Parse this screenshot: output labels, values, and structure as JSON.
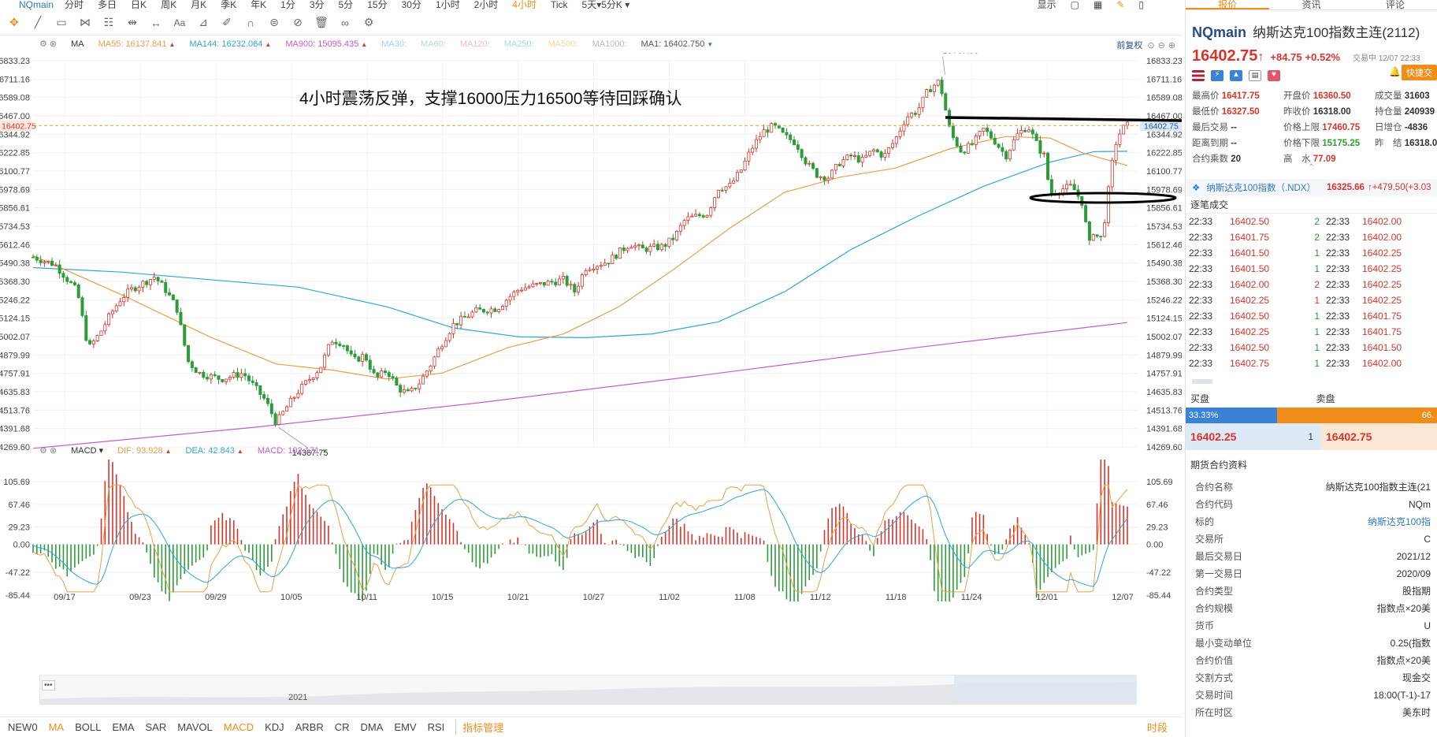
{
  "topbar": {
    "symbol": "NQmain",
    "periods": [
      "分时",
      "多日",
      "日K",
      "周K",
      "月K",
      "季K",
      "年K",
      "1分",
      "3分",
      "5分",
      "15分",
      "30分",
      "1小时",
      "2小时",
      "4小时",
      "Tick",
      "5天▾5分K ▾"
    ],
    "active_period": "4小时",
    "display": "显示"
  },
  "main_legend": {
    "ind": "MA",
    "ma55": "MA55: 16137.841",
    "ma144": "MA144: 16232.064",
    "ma900": "MA900: 15095.435",
    "ma30": "MA30:",
    "ma60": "MA60:",
    "ma120": "MA120:",
    "ma250": "MA250:",
    "ma500": "MA500:",
    "ma1000": "MA1000:",
    "ma1": "MA1: 16402.750",
    "adjust": "前复权"
  },
  "macd_legend": {
    "ind": "MACD",
    "dif": "DIF: 93.928",
    "dea": "DEA: 42.843",
    "macd": "MACD: 102.171"
  },
  "annotation": "4小时震荡反弹，支撑16000压力16500等待回踩确认",
  "colors": {
    "up": "#d9342b",
    "down": "#2e9b3a",
    "ma55": "#e8a04a",
    "ma144": "#2fa7d6",
    "ma900": "#c65bd0",
    "accent": "#f08c1a"
  },
  "chart_data": [
    {
      "type": "candlestick",
      "title": "NQmain 4小时",
      "y_ticks": [
        "16833.23",
        "16711.16",
        "16589.08",
        "16467.00",
        "16344.92",
        "16222.85",
        "16100.77",
        "15978.69",
        "15856.61",
        "15734.53",
        "15612.46",
        "15490.38",
        "15368.30",
        "15246.22",
        "15124.15",
        "15002.07",
        "14879.99",
        "14757.91",
        "14635.83",
        "14513.76",
        "14391.68",
        "14269.60"
      ],
      "ylim": [
        14269.6,
        16833.23
      ],
      "x_ticks": [
        "09/17",
        "09/23",
        "09/29",
        "10/05",
        "10/11",
        "10/15",
        "10/21",
        "10/27",
        "11/02",
        "11/08",
        "11/12",
        "11/18",
        "11/24",
        "12/01",
        "12/07"
      ],
      "current_price": "16402.75",
      "high_label": "16767.50",
      "low_label": "14367.75",
      "close_path": [
        [
          0,
          15530
        ],
        [
          0.02,
          15480
        ],
        [
          0.04,
          15300
        ],
        [
          0.05,
          14920
        ],
        [
          0.06,
          15020
        ],
        [
          0.07,
          15150
        ],
        [
          0.08,
          15260
        ],
        [
          0.09,
          15320
        ],
        [
          0.11,
          15400
        ],
        [
          0.12,
          15310
        ],
        [
          0.13,
          15190
        ],
        [
          0.14,
          14840
        ],
        [
          0.15,
          14760
        ],
        [
          0.17,
          14720
        ],
        [
          0.19,
          14760
        ],
        [
          0.21,
          14580
        ],
        [
          0.22,
          14430
        ],
        [
          0.23,
          14540
        ],
        [
          0.24,
          14640
        ],
        [
          0.25,
          14720
        ],
        [
          0.26,
          14800
        ],
        [
          0.27,
          14980
        ],
        [
          0.28,
          14960
        ],
        [
          0.29,
          14840
        ],
        [
          0.3,
          14880
        ],
        [
          0.31,
          14720
        ],
        [
          0.32,
          14780
        ],
        [
          0.33,
          14660
        ],
        [
          0.34,
          14620
        ],
        [
          0.35,
          14700
        ],
        [
          0.36,
          14820
        ],
        [
          0.37,
          14960
        ],
        [
          0.38,
          15080
        ],
        [
          0.4,
          15170
        ],
        [
          0.42,
          15190
        ],
        [
          0.43,
          15260
        ],
        [
          0.44,
          15320
        ],
        [
          0.46,
          15350
        ],
        [
          0.48,
          15380
        ],
        [
          0.49,
          15300
        ],
        [
          0.5,
          15460
        ],
        [
          0.52,
          15500
        ],
        [
          0.54,
          15620
        ],
        [
          0.55,
          15580
        ],
        [
          0.57,
          15600
        ],
        [
          0.58,
          15660
        ],
        [
          0.59,
          15780
        ],
        [
          0.61,
          15820
        ],
        [
          0.62,
          15990
        ],
        [
          0.63,
          16000
        ],
        [
          0.64,
          16100
        ],
        [
          0.65,
          16250
        ],
        [
          0.66,
          16360
        ],
        [
          0.67,
          16400
        ],
        [
          0.68,
          16330
        ],
        [
          0.69,
          16290
        ],
        [
          0.7,
          16150
        ],
        [
          0.71,
          16070
        ],
        [
          0.72,
          16060
        ],
        [
          0.73,
          16160
        ],
        [
          0.74,
          16200
        ],
        [
          0.75,
          16170
        ],
        [
          0.76,
          16240
        ],
        [
          0.77,
          16200
        ],
        [
          0.78,
          16310
        ],
        [
          0.79,
          16460
        ],
        [
          0.8,
          16500
        ],
        [
          0.81,
          16640
        ],
        [
          0.82,
          16700
        ],
        [
          0.83,
          16350
        ],
        [
          0.84,
          16230
        ],
        [
          0.85,
          16280
        ],
        [
          0.86,
          16380
        ],
        [
          0.87,
          16300
        ],
        [
          0.88,
          16200
        ],
        [
          0.89,
          16340
        ],
        [
          0.9,
          16400
        ],
        [
          0.91,
          16250
        ],
        [
          0.915,
          16200
        ],
        [
          0.92,
          15950
        ],
        [
          0.93,
          15980
        ],
        [
          0.94,
          16000
        ],
        [
          0.95,
          15880
        ],
        [
          0.955,
          15600
        ],
        [
          0.96,
          15720
        ],
        [
          0.965,
          15620
        ],
        [
          0.97,
          15800
        ],
        [
          0.975,
          16100
        ],
        [
          0.98,
          16300
        ],
        [
          0.985,
          16380
        ],
        [
          0.99,
          16402.75
        ]
      ],
      "ma55_path": [
        [
          0,
          15540
        ],
        [
          0.08,
          15280
        ],
        [
          0.16,
          15000
        ],
        [
          0.22,
          14820
        ],
        [
          0.27,
          14780
        ],
        [
          0.32,
          14720
        ],
        [
          0.37,
          14760
        ],
        [
          0.43,
          14930
        ],
        [
          0.48,
          15020
        ],
        [
          0.53,
          15200
        ],
        [
          0.58,
          15450
        ],
        [
          0.63,
          15720
        ],
        [
          0.68,
          15960
        ],
        [
          0.73,
          16060
        ],
        [
          0.78,
          16120
        ],
        [
          0.83,
          16250
        ],
        [
          0.88,
          16330
        ],
        [
          0.92,
          16320
        ],
        [
          0.95,
          16220
        ],
        [
          0.99,
          16137
        ]
      ],
      "ma144_path": [
        [
          0,
          15460
        ],
        [
          0.08,
          15430
        ],
        [
          0.16,
          15380
        ],
        [
          0.24,
          15330
        ],
        [
          0.32,
          15200
        ],
        [
          0.38,
          15060
        ],
        [
          0.44,
          15000
        ],
        [
          0.5,
          14995
        ],
        [
          0.56,
          15020
        ],
        [
          0.62,
          15100
        ],
        [
          0.68,
          15300
        ],
        [
          0.74,
          15580
        ],
        [
          0.8,
          15800
        ],
        [
          0.86,
          16000
        ],
        [
          0.92,
          16160
        ],
        [
          0.96,
          16230
        ],
        [
          0.99,
          16232
        ]
      ],
      "ma900_path": [
        [
          0,
          14260
        ],
        [
          0.2,
          14400
        ],
        [
          0.4,
          14560
        ],
        [
          0.6,
          14740
        ],
        [
          0.8,
          14930
        ],
        [
          0.99,
          15095
        ]
      ]
    },
    {
      "type": "bar",
      "title": "MACD",
      "y_ticks": [
        "105.69",
        "67.46",
        "29.23",
        "0.00",
        "-47.22",
        "-85.44"
      ],
      "ylim": [
        -85.44,
        105.69
      ]
    }
  ],
  "navigator": {
    "year": "2021"
  },
  "indicators": [
    "NEW0",
    "MA",
    "BOLL",
    "EMA",
    "SAR",
    "MAVOL",
    "MACD",
    "KDJ",
    "ARBR",
    "CR",
    "DMA",
    "EMV",
    "RSI"
  ],
  "indicators_active": [
    "MA",
    "MACD"
  ],
  "indicator_manager": "指标管理",
  "tr_button": "时段",
  "panel": {
    "tabs": [
      "报价",
      "资讯",
      "评论"
    ],
    "symbol": "NQmain",
    "name": "纳斯达克100指数主连(2112)",
    "price": "16402.75",
    "arrow": "↑",
    "change": "+84.75",
    "pct": "+0.52%",
    "status": "交易中 12/07 22:33",
    "quick_btn": "快捷交",
    "stats": [
      [
        "最高价",
        "16417.75",
        "r",
        "开盘价",
        "16360.50",
        "r",
        "成交量",
        "31603",
        "k"
      ],
      [
        "最低价",
        "16327.50",
        "r",
        "昨收价",
        "16318.00",
        "k",
        "持仓量",
        "240939",
        "k"
      ],
      [
        "最后交易",
        "--",
        "k",
        "价格上限",
        "17460.75",
        "r",
        "日增仓",
        "-4836",
        "k"
      ],
      [
        "距离到期",
        "--",
        "k",
        "价格下限",
        "15175.25",
        "g",
        "昨　结",
        "16318.0",
        "k"
      ],
      [
        "合约乘数",
        "20",
        "k",
        "高　水",
        "77.09",
        "r",
        "",
        "",
        "k"
      ]
    ],
    "ndx_name": "纳斯达克100指数（.NDX）",
    "ndx_value": "16325.66",
    "ndx_change": "↑+479.50(+3.03",
    "trades_title": "逐笔成交",
    "trades": [
      [
        "22:33",
        "16402.50",
        "2",
        "22:33",
        "16402.00"
      ],
      [
        "22:33",
        "16401.75",
        "2",
        "22:33",
        "16402.00"
      ],
      [
        "22:33",
        "16401.50",
        "1",
        "22:33",
        "16402.25"
      ],
      [
        "22:33",
        "16401.50",
        "1",
        "22:33",
        "16402.25"
      ],
      [
        "22:33",
        "16402.00",
        "2",
        "22:33",
        "16402.25"
      ],
      [
        "22:33",
        "16402.25",
        "1",
        "22:33",
        "16402.25"
      ],
      [
        "22:33",
        "16402.50",
        "1",
        "22:33",
        "16401.75"
      ],
      [
        "22:33",
        "16402.25",
        "1",
        "22:33",
        "16401.75"
      ],
      [
        "22:33",
        "16402.50",
        "1",
        "22:33",
        "16401.50"
      ],
      [
        "22:33",
        "16402.75",
        "1",
        "22:33",
        "16402.00"
      ]
    ],
    "bid_label": "买盘",
    "ask_label": "卖盘",
    "bid_ratio": "33.33%",
    "ask_ratio": "66.",
    "bid_price": "16402.25",
    "bid_qty": "1",
    "ask_price": "16402.75",
    "info_title": "期货合约资料",
    "info": [
      [
        "合约名称",
        "纳斯达克100指数主连(21"
      ],
      [
        "合约代码",
        "NQm"
      ],
      [
        "标的",
        "纳斯达克100指"
      ],
      [
        "交易所",
        "C"
      ],
      [
        "最后交易日",
        "2021/12"
      ],
      [
        "第一交易日",
        "2020/09"
      ],
      [
        "合约类型",
        "股指期"
      ],
      [
        "合约规模",
        "指数点×20美"
      ],
      [
        "货币",
        "U"
      ],
      [
        "最小变动单位",
        "0.25(指数"
      ],
      [
        "合约价值",
        "指数点×20美"
      ],
      [
        "交割方式",
        "现金交"
      ],
      [
        "交易时间",
        "18:00(T-1)-17"
      ],
      [
        "所在时区",
        "美东时"
      ]
    ]
  }
}
